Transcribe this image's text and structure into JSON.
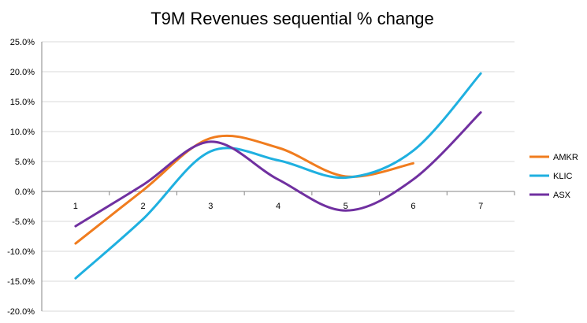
{
  "chart_data": {
    "type": "line",
    "title": "T9M Revenues sequential % change",
    "xlabel": "",
    "ylabel": "",
    "categories": [
      "1",
      "2",
      "3",
      "4",
      "5",
      "6",
      "7"
    ],
    "ylim": [
      -0.2,
      0.25
    ],
    "yticks": [
      0.25,
      0.2,
      0.15,
      0.1,
      0.05,
      0.0,
      -0.05,
      -0.1,
      -0.15,
      -0.2
    ],
    "ytick_labels": [
      "25.0%",
      "20.0%",
      "15.0%",
      "10.0%",
      "5.0%",
      "0.0%",
      "-5.0%",
      "-10.0%",
      "-15.0%",
      "-20.0%"
    ],
    "grid": true,
    "smooth": true,
    "legend": "right",
    "series": [
      {
        "name": "AMKR",
        "color": "#f07c1e",
        "values": [
          -0.087,
          0.002,
          0.089,
          0.073,
          0.025,
          0.047,
          null
        ]
      },
      {
        "name": "KLIC",
        "color": "#1fb0e0",
        "values": [
          -0.145,
          -0.046,
          0.067,
          0.052,
          0.023,
          0.068,
          0.197
        ]
      },
      {
        "name": "ASX",
        "color": "#7030a0",
        "values": [
          -0.058,
          0.011,
          0.083,
          0.02,
          -0.032,
          0.02,
          0.132
        ]
      }
    ]
  }
}
